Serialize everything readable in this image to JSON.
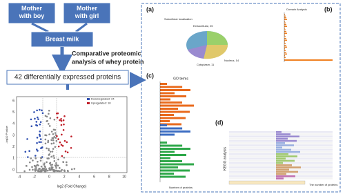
{
  "flow": {
    "mother_boy": "Mother with boy",
    "mother_girl": "Mother with girl",
    "breast_milk": "Breast milk",
    "analysis": [
      "Comparative proteomic",
      "analysis of whey protein"
    ],
    "result": "42 differentially expressed proteins"
  },
  "volcano": {
    "y_label": "-log10 P value",
    "x_label": "log2 (Fold Change)",
    "legend": [
      "Downregulated: 24",
      "Upregulated: 18"
    ],
    "x_ticks": [
      "-4",
      "-2",
      "0",
      "2",
      "4",
      "6",
      "8",
      "10"
    ],
    "y_ticks": [
      "0",
      "1",
      "2",
      "3",
      "4",
      "5",
      "6"
    ]
  },
  "panels": {
    "a": {
      "tag": "(a)",
      "title": "Subcellular localization",
      "labels": [
        "Extracellular, 25",
        "Nucleus, 14",
        "Cytoplasm, 11"
      ]
    },
    "b": {
      "tag": "(b)",
      "title": "Domain Analysis"
    },
    "c": {
      "tag": "(c)",
      "title": "GO terms",
      "x_label": "Number of proteins"
    },
    "d": {
      "tag": "(d)",
      "y_label": "KEGG analysis",
      "x_label": "The number of proteins"
    }
  }
}
